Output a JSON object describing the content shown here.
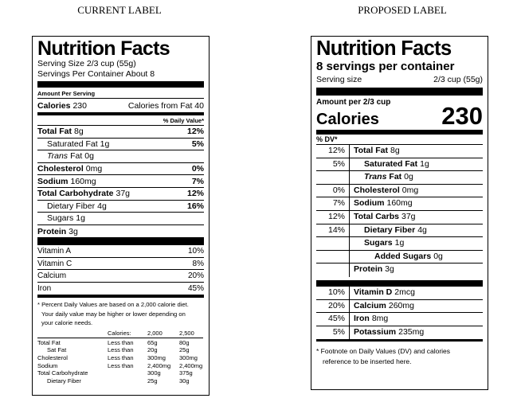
{
  "current": {
    "heading": "CURRENT LABEL",
    "title": "Nutrition Facts",
    "serving_size": "Serving Size 2/3 cup (55g)",
    "servings": "Servings Per Container About 8",
    "amount_per_serving": "Amount Per Serving",
    "calories_label": "Calories",
    "calories": "230",
    "calories_from_fat": "Calories from Fat 40",
    "dv_header": "% Daily Value*",
    "nutrients": [
      {
        "name": "Total Fat",
        "amount": "8g",
        "dv": "12%",
        "bold": true
      },
      {
        "name": "Saturated Fat",
        "amount": "1g",
        "dv": "5%",
        "indent": 1
      },
      {
        "italic": "Trans",
        "name": "Fat",
        "amount": "0g",
        "indent": 1
      },
      {
        "name": "Cholesterol",
        "amount": "0mg",
        "dv": "0%",
        "bold": true
      },
      {
        "name": "Sodium",
        "amount": "160mg",
        "dv": "7%",
        "bold": true
      },
      {
        "name": "Total Carbohydrate",
        "amount": "37g",
        "dv": "12%",
        "bold": true
      },
      {
        "name": "Dietary Fiber",
        "amount": "4g",
        "dv": "16%",
        "indent": 1
      },
      {
        "name": "Sugars",
        "amount": "1g",
        "indent": 1
      },
      {
        "name": "Protein",
        "amount": "3g",
        "bold": true
      }
    ],
    "vitamins": [
      {
        "name": "Vitamin A",
        "dv": "10%"
      },
      {
        "name": "Vitamin C",
        "dv": "8%"
      },
      {
        "name": "Calcium",
        "dv": "20%"
      },
      {
        "name": "Iron",
        "dv": "45%"
      }
    ],
    "footnote": [
      "* Percent Daily Values are based on a 2,000 calorie diet.",
      "Your daily value may be higher or lower depending on",
      "your calorie needs."
    ],
    "table_header": {
      "label": "Calories:",
      "values": [
        "2,000",
        "2,500"
      ]
    },
    "table_rows": [
      {
        "nutrient": "Total Fat",
        "limit": "Less than",
        "values": [
          "65g",
          "80g"
        ]
      },
      {
        "nutrient": "Sat Fat",
        "limit": "Less than",
        "values": [
          "20g",
          "25g"
        ],
        "indent": 1
      },
      {
        "nutrient": "Cholesterol",
        "limit": "Less than",
        "values": [
          "300mg",
          "300mg"
        ]
      },
      {
        "nutrient": "Sodium",
        "limit": "Less than",
        "values": [
          "2,400mg",
          "2,400mg"
        ]
      },
      {
        "nutrient": "Total Carbohydrate",
        "values": [
          "300g",
          "375g"
        ]
      },
      {
        "nutrient": "Dietary Fiber",
        "values": [
          "25g",
          "30g"
        ],
        "indent": 1
      }
    ]
  },
  "proposed": {
    "heading": "PROPOSED LABEL",
    "title": "Nutrition Facts",
    "servings": "8 servings per container",
    "serving_size_label": "Serving size",
    "serving_size": "2/3 cup (55g)",
    "amount_per": "Amount per 2/3 cup",
    "calories_label": "Calories",
    "calories": "230",
    "dv_header": "% DV*",
    "nutrients": [
      {
        "dv": "12%",
        "name": "Total Fat",
        "amount": "8g"
      },
      {
        "dv": "5%",
        "name": "Saturated Fat",
        "amount": "1g",
        "indent": 1
      },
      {
        "italic": "Trans",
        "name": "Fat",
        "amount": "0g",
        "indent": 1
      },
      {
        "dv": "0%",
        "name": "Cholesterol",
        "amount": "0mg"
      },
      {
        "dv": "7%",
        "name": "Sodium",
        "amount": "160mg"
      },
      {
        "dv": "12%",
        "name": "Total Carbs",
        "amount": "37g"
      },
      {
        "dv": "14%",
        "name": "Dietary Fiber",
        "amount": "4g",
        "indent": 1
      },
      {
        "name": "Sugars",
        "amount": "1g",
        "indent": 1
      },
      {
        "name": "Added Sugars",
        "amount": "0g",
        "indent": 2
      },
      {
        "name": "Protein",
        "amount": "3g"
      }
    ],
    "vitamins": [
      {
        "dv": "10%",
        "name": "Vitamin D",
        "amount": "2mcg"
      },
      {
        "dv": "20%",
        "name": "Calcium",
        "amount": "260mg"
      },
      {
        "dv": "45%",
        "name": "Iron",
        "amount": "8mg"
      },
      {
        "dv": "5%",
        "name": "Potassium",
        "amount": "235mg"
      }
    ],
    "footnote": [
      "*  Footnote on Daily Values (DV) and calories",
      "reference to be inserted here."
    ]
  }
}
